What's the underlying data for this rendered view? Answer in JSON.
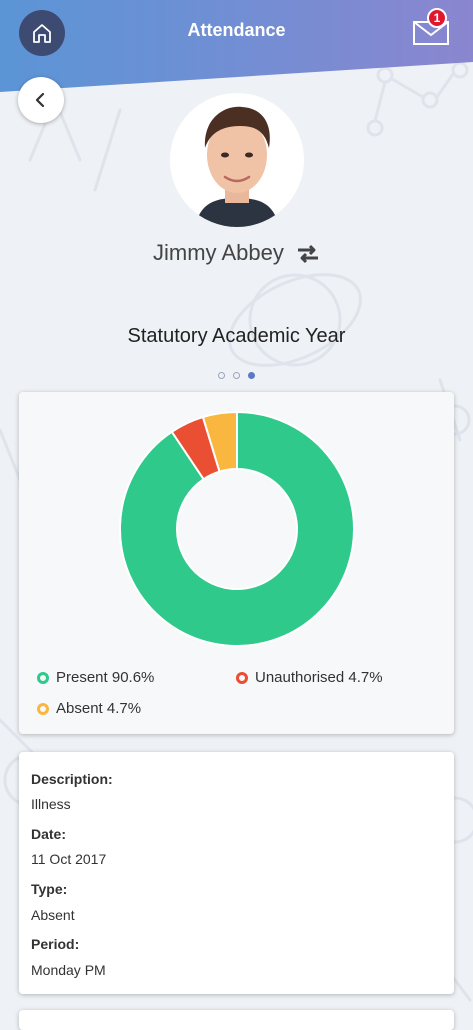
{
  "header": {
    "title": "Attendance",
    "unread_count": "1",
    "gradient_start": "#5b95d6",
    "gradient_end": "#8a86cf"
  },
  "student": {
    "name": "Jimmy Abbey"
  },
  "section_title": "Statutory Academic Year",
  "pager": {
    "pages": 3,
    "active_index": 2
  },
  "chart_data": {
    "type": "pie",
    "variant": "donut",
    "slices": [
      {
        "label": "Present",
        "value": 90.6,
        "color": "#2ec98b"
      },
      {
        "label": "Unauthorised",
        "value": 4.7,
        "color": "#ea4e33"
      },
      {
        "label": "Absent",
        "value": 4.7,
        "color": "#f9b740"
      }
    ],
    "legend": [
      "Present 90.6%",
      "Unauthorised 4.7%",
      "Absent 4.7%"
    ],
    "legend_placement": "bottom"
  },
  "detail": {
    "description_label": "Description:",
    "description_value": "Illness",
    "date_label": "Date:",
    "date_value": "11 Oct 2017",
    "type_label": "Type:",
    "type_value": "Absent",
    "period_label": "Period:",
    "period_value": "Monday PM"
  },
  "icons": {
    "home": "home-icon",
    "mail": "envelope-icon",
    "back": "chevron-left-icon",
    "swap": "swap-icon"
  }
}
